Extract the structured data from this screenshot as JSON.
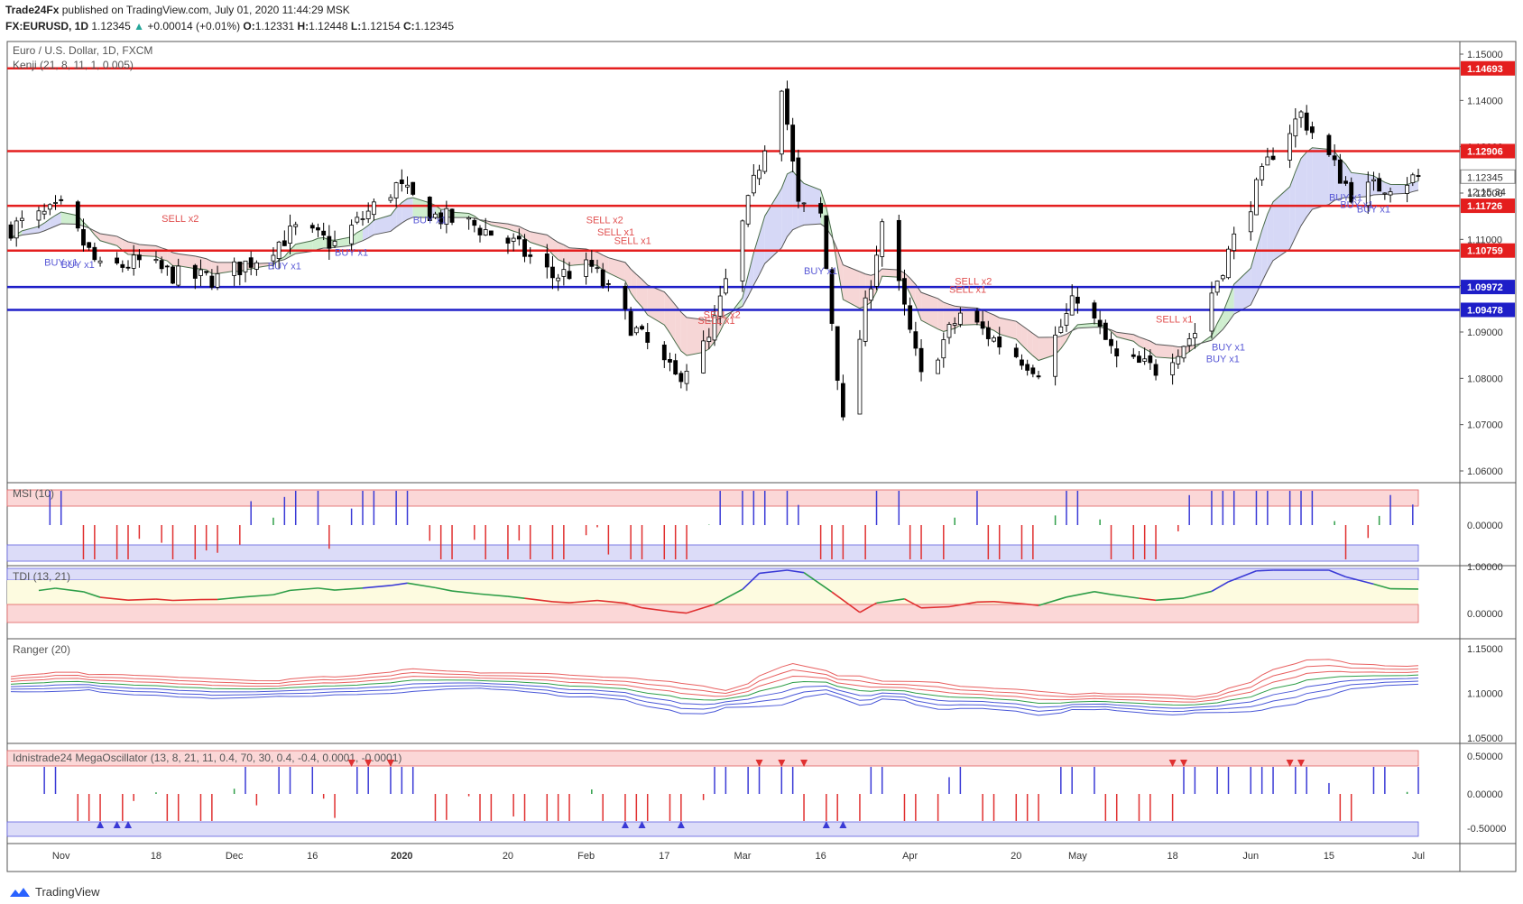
{
  "header": {
    "publisher": "Trade24Fx",
    "published_text": "published on TradingView.com, July 01, 2020 11:44:29 MSK",
    "symbol": "FX:EURUSD, 1D",
    "last": "1.12345",
    "change": "+0.00014 (+0.01%)",
    "o_label": "O:",
    "o": "1.12331",
    "h_label": "H:",
    "h": "1.12448",
    "l_label": "L:",
    "l": "1.12154",
    "c_label": "C:",
    "c": "1.12345"
  },
  "footer": {
    "brand": "TradingView"
  },
  "colors": {
    "up": "#ffffff",
    "down": "#000000",
    "resistance": "#e41e1e",
    "support": "#1e1ec8",
    "kenji_line": "#555555",
    "cloud_green": "#cfeecf",
    "cloud_red": "#f6d6d6",
    "cloud_blue": "#d6d8f6"
  },
  "chart_data": [
    {
      "type": "line",
      "pane": "price",
      "title": "Euro / U.S. Dollar, 1D, FXCM",
      "subtitle": "Kenji (21, 8, 11, 1, 0.005)",
      "x": [
        "Nov",
        "18",
        "Dec",
        "16",
        "2020",
        "20",
        "Feb",
        "17",
        "Mar",
        "16",
        "Apr",
        "20",
        "May",
        "18",
        "Jun",
        "15",
        "Jul"
      ],
      "x_range": [
        "2019-10-23",
        "2020-07-01"
      ],
      "ylim": [
        1.06,
        1.15
      ],
      "yticks": [
        "1.15000",
        "1.14000",
        "1.13000",
        "1.12000",
        "1.11000",
        "1.10000",
        "1.09000",
        "1.08000",
        "1.07000",
        "1.06000"
      ],
      "current_price_label": "1.12345",
      "countdown": "12:15:34",
      "levels": [
        {
          "value": 1.14693,
          "label": "1.14693",
          "kind": "resistance"
        },
        {
          "value": 1.12906,
          "label": "1.12906",
          "kind": "resistance"
        },
        {
          "value": 1.11726,
          "label": "1.11726",
          "kind": "resistance"
        },
        {
          "value": 1.10759,
          "label": "1.10759",
          "kind": "resistance"
        },
        {
          "value": 1.09972,
          "label": "1.09972",
          "kind": "support"
        },
        {
          "value": 1.09478,
          "label": "1.09478",
          "kind": "support"
        }
      ],
      "close_path": [
        [
          "2019-10-23",
          1.1125
        ],
        [
          "2019-11-01",
          1.1165
        ],
        [
          "2019-11-08",
          1.1035
        ],
        [
          "2019-11-15",
          1.105
        ],
        [
          "2019-11-22",
          1.102
        ],
        [
          "2019-11-29",
          1.1015
        ],
        [
          "2019-12-06",
          1.106
        ],
        [
          "2019-12-13",
          1.112
        ],
        [
          "2019-12-20",
          1.109
        ],
        [
          "2019-12-31",
          1.1215
        ],
        [
          "2020-01-07",
          1.115
        ],
        [
          "2020-01-14",
          1.113
        ],
        [
          "2020-01-21",
          1.109
        ],
        [
          "2020-01-28",
          1.102
        ],
        [
          "2020-02-04",
          1.104
        ],
        [
          "2020-02-11",
          1.0915
        ],
        [
          "2020-02-19",
          1.08
        ],
        [
          "2020-02-25",
          1.088
        ],
        [
          "2020-03-02",
          1.113
        ],
        [
          "2020-03-09",
          1.144
        ],
        [
          "2020-03-12",
          1.117
        ],
        [
          "2020-03-16",
          1.115
        ],
        [
          "2020-03-20",
          1.07
        ],
        [
          "2020-03-27",
          1.114
        ],
        [
          "2020-04-03",
          1.08
        ],
        [
          "2020-04-10",
          1.094
        ],
        [
          "2020-04-17",
          1.0875
        ],
        [
          "2020-04-24",
          1.082
        ],
        [
          "2020-05-01",
          1.098
        ],
        [
          "2020-05-08",
          1.084
        ],
        [
          "2020-05-15",
          1.082
        ],
        [
          "2020-05-22",
          1.09
        ],
        [
          "2020-05-29",
          1.11
        ],
        [
          "2020-06-05",
          1.129
        ],
        [
          "2020-06-10",
          1.137
        ],
        [
          "2020-06-19",
          1.12
        ],
        [
          "2020-06-26",
          1.122
        ],
        [
          "2020-07-01",
          1.1234
        ]
      ],
      "signals": [
        {
          "text": "BUY x1",
          "kind": "buy",
          "date": "2019-10-29",
          "y": 1.1043
        },
        {
          "text": "BUY x1",
          "kind": "buy",
          "date": "2019-11-01",
          "y": 1.1038
        },
        {
          "text": "SELL x2",
          "kind": "sell",
          "date": "2019-11-19",
          "y": 1.1138
        },
        {
          "text": "BUY x1",
          "kind": "buy",
          "date": "2019-12-08",
          "y": 1.1035
        },
        {
          "text": "BUY x1",
          "kind": "buy",
          "date": "2019-12-20",
          "y": 1.1065
        },
        {
          "text": "BUY x1",
          "kind": "buy",
          "date": "2020-01-03",
          "y": 1.1135
        },
        {
          "text": "SELL x2",
          "kind": "sell",
          "date": "2020-02-03",
          "y": 1.1135
        },
        {
          "text": "SELL x1",
          "kind": "sell",
          "date": "2020-02-05",
          "y": 1.1108
        },
        {
          "text": "SELL x1",
          "kind": "sell",
          "date": "2020-02-08",
          "y": 1.109
        },
        {
          "text": "SELL x2",
          "kind": "sell",
          "date": "2020-02-24",
          "y": 1.093
        },
        {
          "text": "SELL x1",
          "kind": "sell",
          "date": "2020-02-23",
          "y": 1.0918
        },
        {
          "text": "BUY x1",
          "kind": "buy",
          "date": "2020-03-13",
          "y": 1.1025
        },
        {
          "text": "SELL x2",
          "kind": "sell",
          "date": "2020-04-09",
          "y": 1.1002
        },
        {
          "text": "SELL x1",
          "kind": "sell",
          "date": "2020-04-08",
          "y": 1.0985
        },
        {
          "text": "SELL x1",
          "kind": "sell",
          "date": "2020-05-15",
          "y": 1.092
        },
        {
          "text": "BUY x1",
          "kind": "buy",
          "date": "2020-05-25",
          "y": 1.086
        },
        {
          "text": "BUY x1",
          "kind": "buy",
          "date": "2020-05-24",
          "y": 1.0835
        },
        {
          "text": "BUY x1",
          "kind": "buy",
          "date": "2020-06-15",
          "y": 1.1183
        },
        {
          "text": "BUY x1",
          "kind": "buy",
          "date": "2020-06-17",
          "y": 1.1168
        },
        {
          "text": "BUY x1",
          "kind": "buy",
          "date": "2020-06-20",
          "y": 1.1158
        }
      ]
    },
    {
      "type": "bar",
      "pane": "msi",
      "title": "MSI (10)",
      "yticks": [
        "0.00000"
      ],
      "ylim": [
        -0.07,
        0.07
      ],
      "sign_by_month": [
        "Oct +",
        "Nov -",
        "Dec +",
        "Jan -",
        "Feb -",
        "Mar +",
        "Apr -",
        "May -",
        "Jun +",
        "Jul -"
      ]
    },
    {
      "type": "line",
      "pane": "tdi",
      "title": "TDI (13, 21)",
      "yticks": [
        "1.00000",
        "0.00000"
      ],
      "ylim": [
        -0.1,
        1.05
      ]
    },
    {
      "type": "line",
      "pane": "ranger",
      "title": "Ranger (20)",
      "yticks": [
        "1.15000",
        "1.10000",
        "1.05000"
      ],
      "ylim": [
        1.05,
        1.155
      ]
    },
    {
      "type": "bar",
      "pane": "mega",
      "title": "Idnistrade24 MegaOscillator (13, 8, 21, 11, 0.4, 70, 30, 0.4, -0.4, 0.0001, -0.0001)",
      "yticks": [
        "0.50000",
        "0.00000",
        "-0.50000"
      ],
      "ylim": [
        -0.62,
        0.72
      ]
    }
  ]
}
